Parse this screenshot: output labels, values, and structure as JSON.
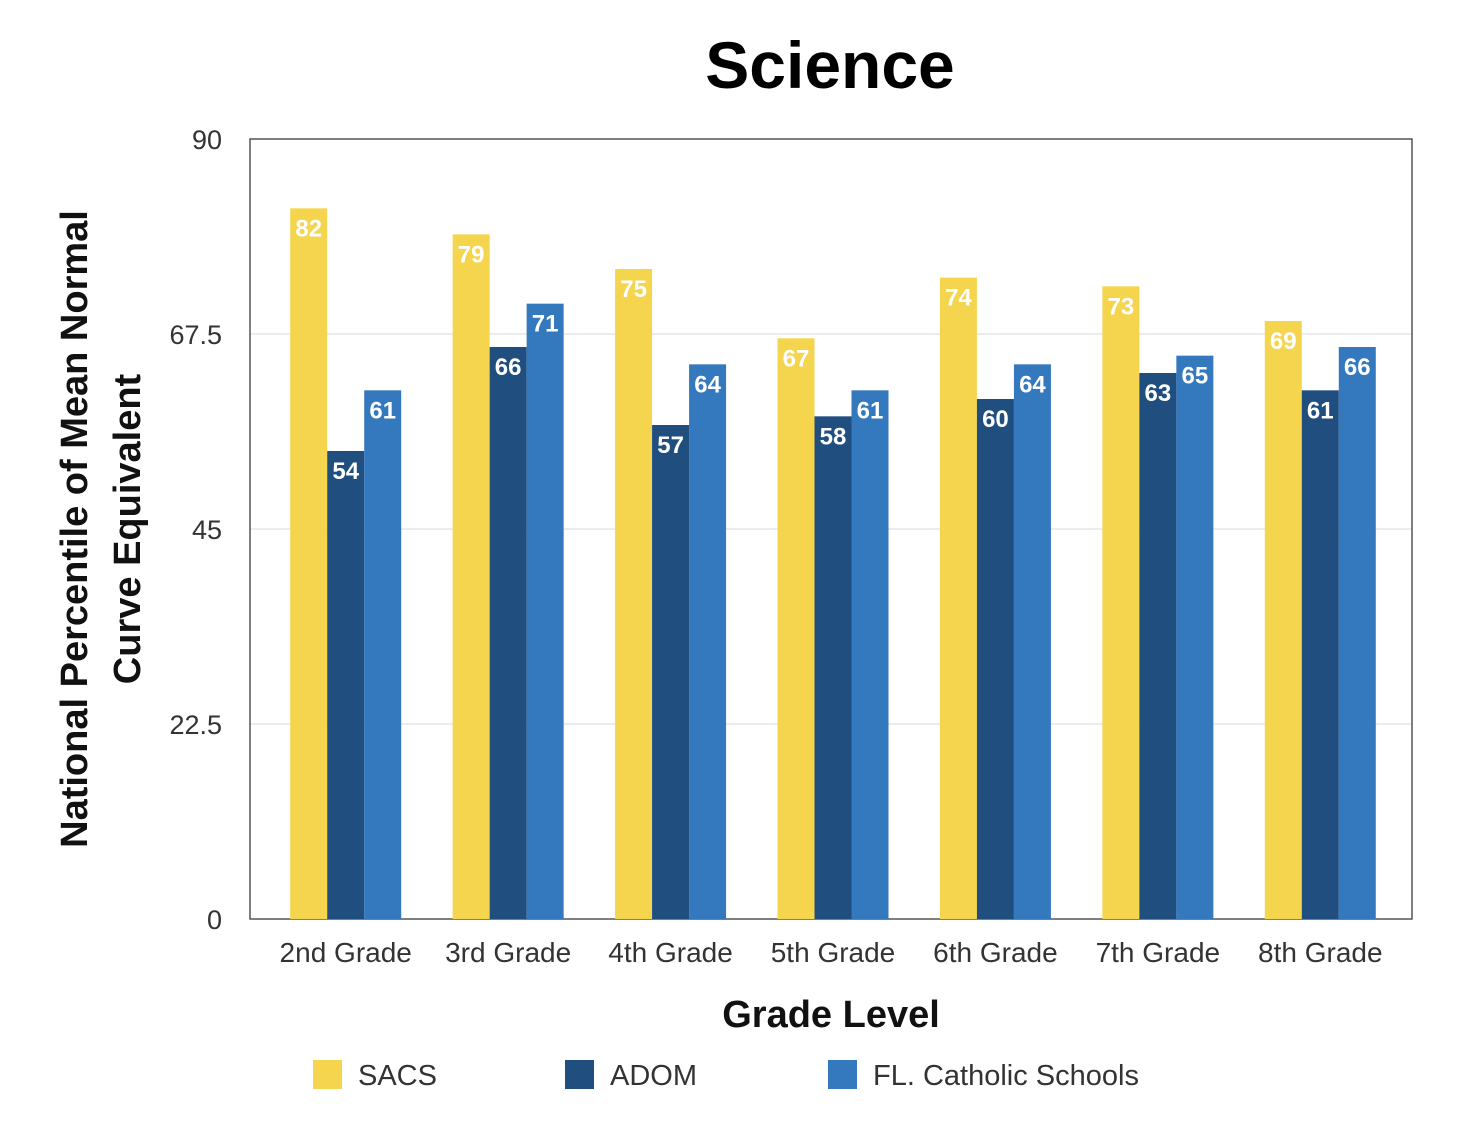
{
  "chart_data": {
    "type": "bar",
    "title": "Science",
    "xlabel": "Grade Level",
    "ylabel": [
      "National Percentile of Mean Normal",
      "Curve Equivalent"
    ],
    "ylim": [
      0,
      90
    ],
    "yticks": [
      0,
      22.5,
      45,
      67.5,
      90
    ],
    "ytick_labels": [
      "0",
      "22.5",
      "45",
      "67.5",
      "90"
    ],
    "grid": true,
    "legend_position": "bottom",
    "categories": [
      "2nd Grade",
      "3rd Grade",
      "4th Grade",
      "5th Grade",
      "6th Grade",
      "7th Grade",
      "8th Grade"
    ],
    "series": [
      {
        "name": "SACS",
        "color": "#F5D54E",
        "values": [
          82,
          79,
          75,
          67,
          74,
          73,
          69
        ]
      },
      {
        "name": "ADOM",
        "color": "#1F4E7F",
        "values": [
          54,
          66,
          57,
          58,
          60,
          63,
          61
        ]
      },
      {
        "name": "FL. Catholic Schools",
        "color": "#3478BE",
        "values": [
          61,
          71,
          64,
          61,
          64,
          65,
          66
        ]
      }
    ]
  }
}
